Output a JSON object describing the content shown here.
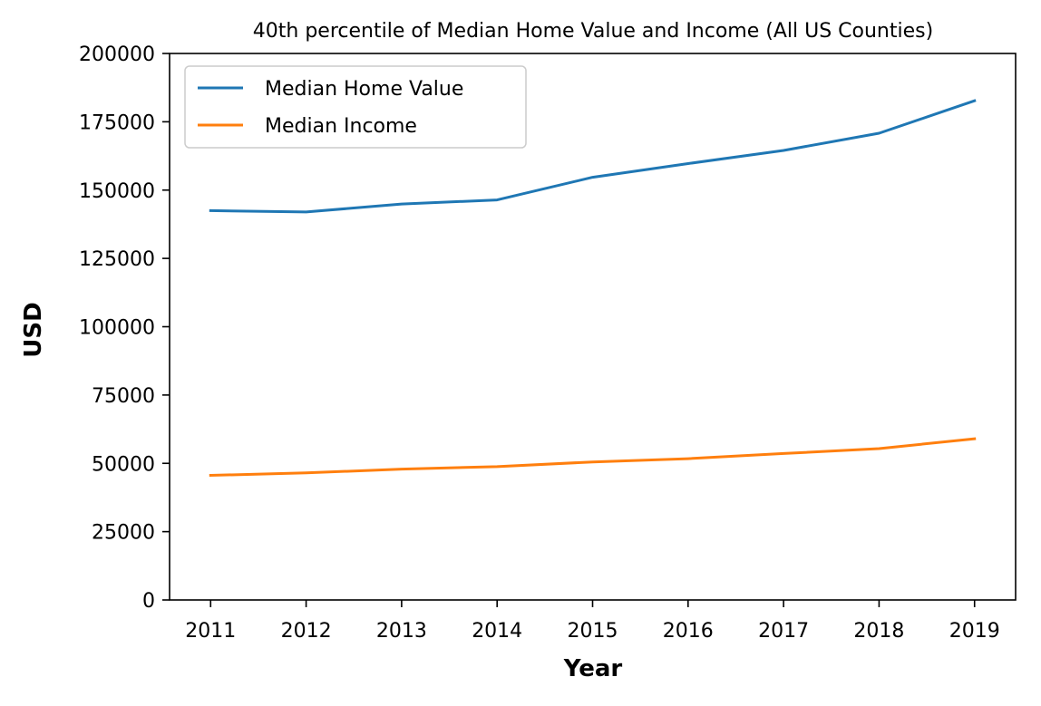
{
  "chart_data": {
    "type": "line",
    "title": "40th percentile of Median Home Value and Income (All US Counties)",
    "xlabel": "Year",
    "ylabel": "USD",
    "x": [
      2011,
      2012,
      2013,
      2014,
      2015,
      2016,
      2017,
      2018,
      2019
    ],
    "xlim": [
      2010.57,
      2019.43
    ],
    "ylim": [
      0,
      200000
    ],
    "yticks": [
      0,
      25000,
      50000,
      75000,
      100000,
      125000,
      150000,
      175000,
      200000
    ],
    "grid": false,
    "legend_position": "top-left",
    "series": [
      {
        "name": "Median Home Value",
        "color": "#1f77b4",
        "values": [
          142500,
          142000,
          144900,
          146400,
          154700,
          159700,
          164500,
          170800,
          182700
        ]
      },
      {
        "name": "Median Income",
        "color": "#ff7f0e",
        "values": [
          45600,
          46500,
          47900,
          48800,
          50500,
          51700,
          53600,
          55400,
          59000
        ]
      }
    ]
  }
}
